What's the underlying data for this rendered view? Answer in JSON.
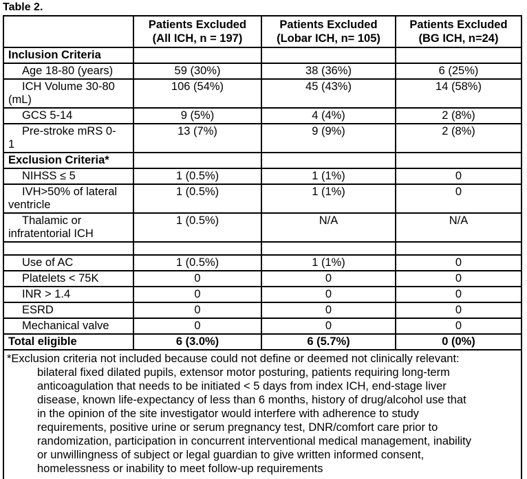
{
  "title": "Table 2.",
  "colors": {
    "text": "#000000",
    "border": "#000000",
    "background": "#ffffff"
  },
  "table": {
    "columns": [
      "",
      "Patients Excluded\n(All ICH, n = 197)",
      "Patients Excluded\n(Lobar ICH, n= 105)",
      "Patients Excluded\n(BG ICH, n=24)"
    ],
    "rows": [
      {
        "kind": "section",
        "label": "Inclusion Criteria",
        "values": [
          "",
          "",
          ""
        ]
      },
      {
        "kind": "item",
        "label": "Age 18-80 (years)",
        "values": [
          "59 (30%)",
          "38 (36%)",
          "6 (25%)"
        ]
      },
      {
        "kind": "item",
        "label": "ICH Volume 30-80\n(mL)",
        "values": [
          "106 (54%)",
          "45 (43%)",
          "14 (58%)"
        ]
      },
      {
        "kind": "item",
        "label": "GCS 5-14",
        "values": [
          "9 (5%)",
          "4 (4%)",
          "2 (8%)"
        ]
      },
      {
        "kind": "item",
        "label": "Pre-stroke mRS 0-\n1",
        "values": [
          "13 (7%)",
          "9 (9%)",
          "2 (8%)"
        ]
      },
      {
        "kind": "section",
        "label": "Exclusion Criteria*",
        "values": [
          "",
          "",
          ""
        ]
      },
      {
        "kind": "item",
        "label": "NIHSS ≤ 5",
        "values": [
          "1 (0.5%)",
          "1 (1%)",
          "0"
        ]
      },
      {
        "kind": "item",
        "label": "IVH>50% of lateral\nventricle",
        "values": [
          "1 (0.5%)",
          "1 (1%)",
          "0"
        ]
      },
      {
        "kind": "item",
        "label": "Thalamic or\ninfratentorial ICH",
        "values": [
          "1 (0.5%)",
          "N/A",
          "N/A"
        ]
      },
      {
        "kind": "empty",
        "label": "",
        "values": [
          "",
          "",
          ""
        ]
      },
      {
        "kind": "item",
        "label": "Use of AC",
        "values": [
          "1 (0.5%)",
          "1 (1%)",
          "0"
        ]
      },
      {
        "kind": "item",
        "label": "Platelets < 75K",
        "values": [
          "0",
          "0",
          "0"
        ]
      },
      {
        "kind": "item",
        "label": "INR > 1.4",
        "values": [
          "0",
          "0",
          "0"
        ]
      },
      {
        "kind": "item",
        "label": "ESRD",
        "values": [
          "0",
          "0",
          "0"
        ]
      },
      {
        "kind": "item",
        "label": "Mechanical valve",
        "values": [
          "0",
          "0",
          "0"
        ]
      },
      {
        "kind": "total",
        "label": "Total eligible",
        "values": [
          "6 (3.0%)",
          "6 (5.7%)",
          "0 (0%)"
        ]
      }
    ],
    "footnote": "*Exclusion criteria not included because could not define or deemed not clinically relevant:\nbilateral fixed dilated pupils, extensor motor posturing, patients requiring long-term\nanticoagulation that needs to be initiated < 5 days from index ICH, end-stage liver\ndisease, known life-expectancy of less than 6 months, history of drug/alcohol use that\nin the opinion of the site investigator would interfere with adherence to study\nrequirements, positive urine or serum pregnancy test, DNR/comfort care prior to\nrandomization, participation in concurrent interventional medical management, inability\nor unwillingness of subject or legal guardian to give written informed consent,\nhomelessness or inability to meet follow-up requirements"
  }
}
